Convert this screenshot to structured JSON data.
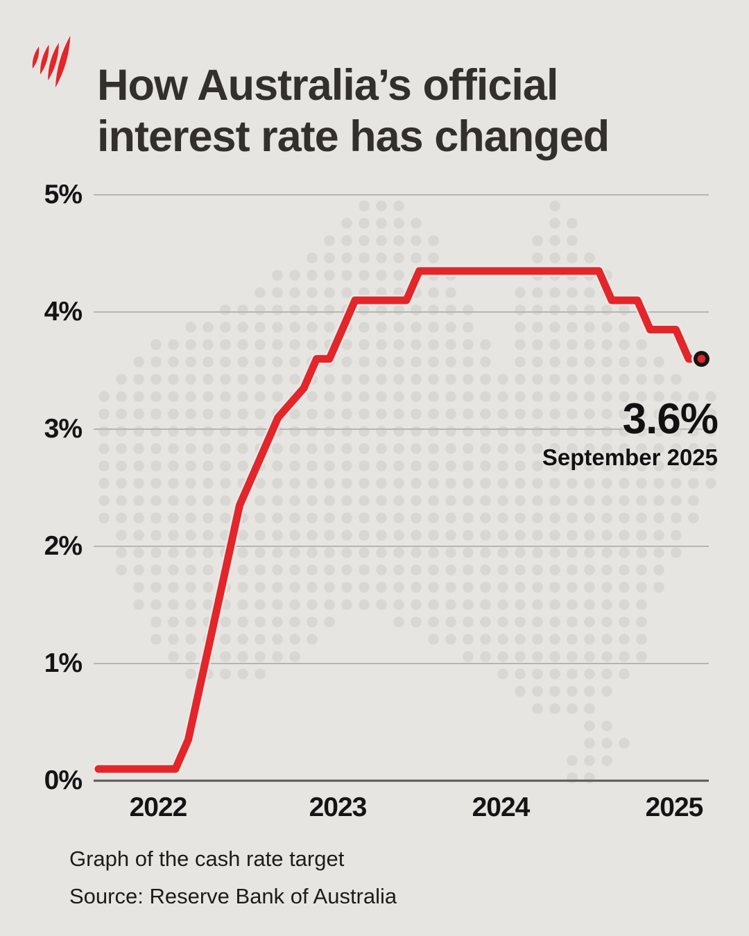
{
  "brand": {
    "logo": "sbs-mercury-logo",
    "logo_color": "#e2262a"
  },
  "header": {
    "title_line1": "How Australia’s official",
    "title_line2": "interest rate has changed"
  },
  "chart_data": {
    "type": "line",
    "title": "How Australia's official interest rate has changed",
    "series": [
      {
        "name": "Cash rate target",
        "color": "#e2262a",
        "points": [
          [
            "2021-10",
            0.1
          ],
          [
            "2022-04",
            0.1
          ],
          [
            "2022-05",
            0.35
          ],
          [
            "2022-06",
            0.85
          ],
          [
            "2022-07",
            1.35
          ],
          [
            "2022-08",
            1.85
          ],
          [
            "2022-09",
            2.35
          ],
          [
            "2022-10",
            2.6
          ],
          [
            "2022-11",
            2.85
          ],
          [
            "2022-12",
            3.1
          ],
          [
            "2023-02",
            3.35
          ],
          [
            "2023-03",
            3.6
          ],
          [
            "2023-04",
            3.6
          ],
          [
            "2023-05",
            3.85
          ],
          [
            "2023-06",
            4.1
          ],
          [
            "2023-10",
            4.1
          ],
          [
            "2023-11",
            4.35
          ],
          [
            "2025-01",
            4.35
          ],
          [
            "2025-02",
            4.1
          ],
          [
            "2025-04",
            4.1
          ],
          [
            "2025-05",
            3.85
          ],
          [
            "2025-07",
            3.85
          ],
          [
            "2025-08",
            3.6
          ],
          [
            "2025-09",
            3.6
          ]
        ]
      }
    ],
    "ylim": [
      0,
      5
    ],
    "yticks": [
      0,
      1,
      2,
      3,
      4,
      5
    ],
    "ytick_labels": [
      "0%",
      "1%",
      "2%",
      "3%",
      "4%",
      "5%"
    ],
    "xtick_labels": [
      "2022",
      "2023",
      "2024",
      "2025"
    ],
    "grid": "horizontal",
    "legend": "none",
    "end_marker": true,
    "background": "australia-dot-map",
    "colors": {
      "line": "#e2262a",
      "grid": "#b7b5b2",
      "baseline": "#5a5856",
      "dots": "#d9d7d4",
      "background": "#e7e5e2",
      "text": "#141414"
    },
    "annotation": {
      "value": "3.6%",
      "date_label": "September 2025"
    }
  },
  "footer": {
    "caption": "Graph of the cash rate target",
    "source": "Source: Reserve Bank of Australia"
  }
}
